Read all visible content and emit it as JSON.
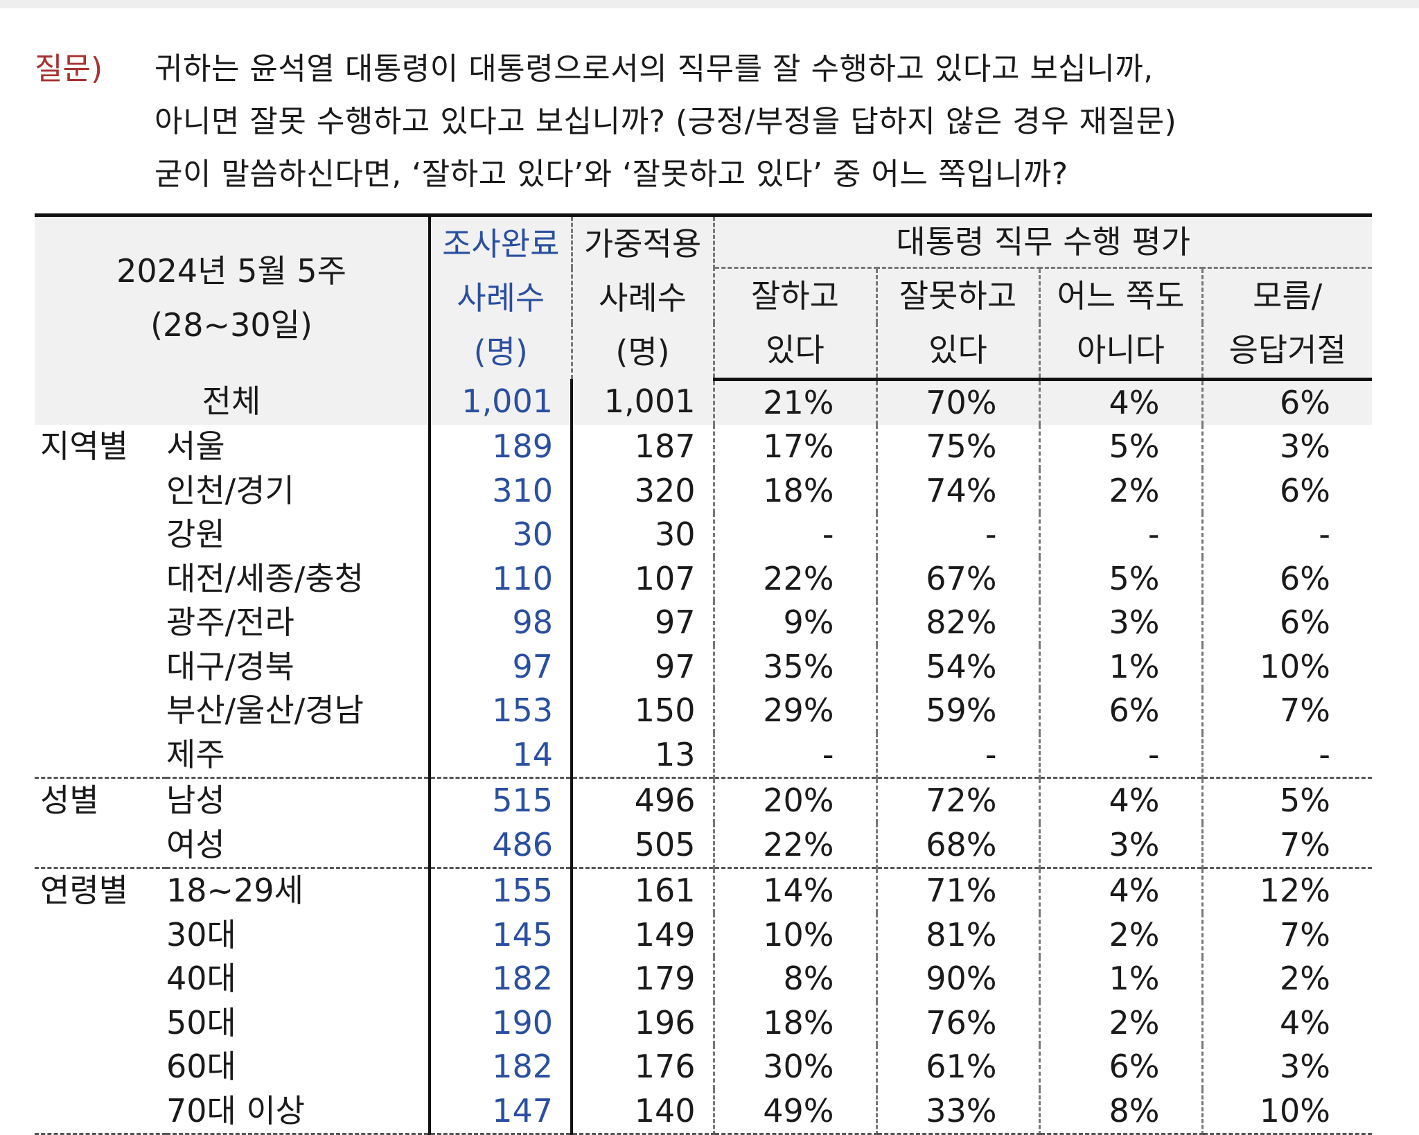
{
  "question": {
    "label": "질문)",
    "lines": [
      "귀하는 윤석열 대통령이 대통령으로서의 직무를 잘 수행하고 있다고 보십니까,",
      "아니면 잘못 수행하고 있다고 보십니까? (긍정/부정을 답하지 않은 경우 재질문)",
      "굳이 말씀하신다면, ‘잘하고 있다’와 ‘잘못하고 있다’ 중 어느 쪽입니까?"
    ]
  },
  "table": {
    "period": [
      "2024년 5월 5주",
      "(28~30일)"
    ],
    "col_n": [
      "조사완료",
      "사례수",
      "(명)"
    ],
    "col_w": [
      "가중적용",
      "사례수",
      "(명)"
    ],
    "eval_title": "대통령 직무 수행 평가",
    "eval_cols": [
      [
        "잘하고",
        "있다"
      ],
      [
        "잘못하고",
        "있다"
      ],
      [
        "어느 쪽도",
        "아니다"
      ],
      [
        "모름/",
        "응답거절"
      ]
    ],
    "total": {
      "label": "전체",
      "n": "1,001",
      "w": "1,001",
      "v": [
        "21%",
        "70%",
        "4%",
        "6%"
      ]
    },
    "groups": [
      {
        "name": "지역별",
        "rows": [
          {
            "label": "서울",
            "n": "189",
            "w": "187",
            "v": [
              "17%",
              "75%",
              "5%",
              "3%"
            ]
          },
          {
            "label": "인천/경기",
            "n": "310",
            "w": "320",
            "v": [
              "18%",
              "74%",
              "2%",
              "6%"
            ]
          },
          {
            "label": "강원",
            "n": "30",
            "w": "30",
            "v": [
              "-",
              "-",
              "-",
              "-"
            ]
          },
          {
            "label": "대전/세종/충청",
            "n": "110",
            "w": "107",
            "v": [
              "22%",
              "67%",
              "5%",
              "6%"
            ]
          },
          {
            "label": "광주/전라",
            "n": "98",
            "w": "97",
            "v": [
              "9%",
              "82%",
              "3%",
              "6%"
            ]
          },
          {
            "label": "대구/경북",
            "n": "97",
            "w": "97",
            "v": [
              "35%",
              "54%",
              "1%",
              "10%"
            ]
          },
          {
            "label": "부산/울산/경남",
            "n": "153",
            "w": "150",
            "v": [
              "29%",
              "59%",
              "6%",
              "7%"
            ]
          },
          {
            "label": "제주",
            "n": "14",
            "w": "13",
            "v": [
              "-",
              "-",
              "-",
              "-"
            ]
          }
        ]
      },
      {
        "name": "성별",
        "rows": [
          {
            "label": "남성",
            "n": "515",
            "w": "496",
            "v": [
              "20%",
              "72%",
              "4%",
              "5%"
            ]
          },
          {
            "label": "여성",
            "n": "486",
            "w": "505",
            "v": [
              "22%",
              "68%",
              "3%",
              "7%"
            ]
          }
        ]
      },
      {
        "name": "연령별",
        "rows": [
          {
            "label": "18~29세",
            "n": "155",
            "w": "161",
            "v": [
              "14%",
              "71%",
              "4%",
              "12%"
            ]
          },
          {
            "label": "30대",
            "n": "145",
            "w": "149",
            "v": [
              "10%",
              "81%",
              "2%",
              "7%"
            ]
          },
          {
            "label": "40대",
            "n": "182",
            "w": "179",
            "v": [
              "8%",
              "90%",
              "1%",
              "2%"
            ]
          },
          {
            "label": "50대",
            "n": "190",
            "w": "196",
            "v": [
              "18%",
              "76%",
              "2%",
              "4%"
            ]
          },
          {
            "label": "60대",
            "n": "182",
            "w": "176",
            "v": [
              "30%",
              "61%",
              "6%",
              "3%"
            ]
          },
          {
            "label": "70대 이상",
            "n": "147",
            "w": "140",
            "v": [
              "49%",
              "33%",
              "8%",
              "10%"
            ]
          }
        ]
      }
    ]
  }
}
